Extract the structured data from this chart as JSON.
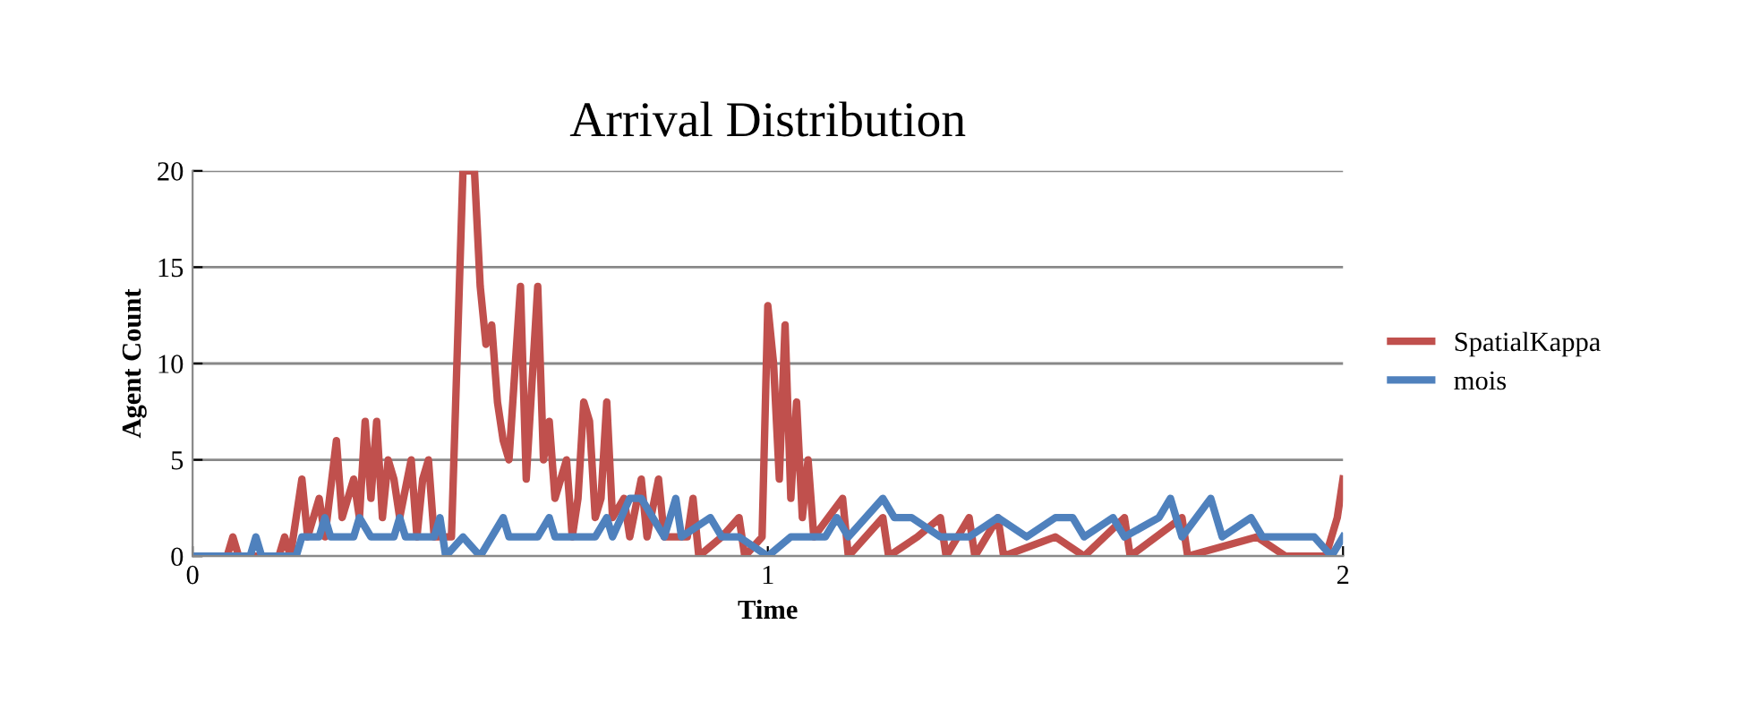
{
  "chart_data": {
    "type": "line",
    "title": "Arrival Distribution",
    "xlabel": "Time",
    "ylabel": "Agent Count",
    "xlim": [
      0,
      2
    ],
    "xticks": [
      0,
      1,
      2
    ],
    "ylim": [
      0,
      20
    ],
    "yticks": [
      0,
      5,
      10,
      15,
      20
    ],
    "grid": "y",
    "legend": "right",
    "series": [
      {
        "name": "SpatialKappa",
        "color": "#c0504d",
        "x": [
          0,
          0.06,
          0.07,
          0.08,
          0.15,
          0.16,
          0.17,
          0.19,
          0.2,
          0.22,
          0.23,
          0.25,
          0.26,
          0.28,
          0.29,
          0.3,
          0.31,
          0.32,
          0.33,
          0.34,
          0.35,
          0.36,
          0.38,
          0.39,
          0.4,
          0.41,
          0.42,
          0.45,
          0.47,
          0.49,
          0.5,
          0.51,
          0.52,
          0.53,
          0.54,
          0.55,
          0.57,
          0.58,
          0.6,
          0.61,
          0.62,
          0.63,
          0.65,
          0.66,
          0.67,
          0.68,
          0.69,
          0.7,
          0.71,
          0.72,
          0.73,
          0.75,
          0.76,
          0.78,
          0.79,
          0.81,
          0.82,
          0.86,
          0.87,
          0.88,
          0.92,
          0.95,
          0.96,
          0.99,
          1.0,
          1.01,
          1.02,
          1.03,
          1.04,
          1.05,
          1.06,
          1.07,
          1.08,
          1.13,
          1.14,
          1.2,
          1.21,
          1.26,
          1.3,
          1.31,
          1.35,
          1.36,
          1.4,
          1.41,
          1.5,
          1.55,
          1.62,
          1.63,
          1.72,
          1.73,
          1.85,
          1.9,
          1.97,
          1.99,
          2.0
        ],
        "values": [
          0,
          0,
          1,
          0,
          0,
          1,
          0,
          4,
          1,
          3,
          1,
          6,
          2,
          4,
          2,
          7,
          3,
          7,
          2,
          5,
          4,
          2,
          5,
          1,
          4,
          5,
          1,
          1,
          20,
          20,
          14,
          11,
          12,
          8,
          6,
          5,
          14,
          4,
          14,
          5,
          7,
          3,
          5,
          1,
          3,
          8,
          7,
          2,
          3,
          8,
          2,
          3,
          1,
          4,
          1,
          4,
          1,
          1,
          3,
          0,
          1,
          2,
          0,
          1,
          13,
          10,
          4,
          12,
          3,
          8,
          2,
          5,
          1,
          3,
          0,
          2,
          0,
          1,
          2,
          0,
          2,
          0,
          2,
          0,
          1,
          0,
          2,
          0,
          2,
          0,
          1,
          0,
          0,
          2,
          4
        ]
      },
      {
        "name": "mois",
        "color": "#4f81bd",
        "x": [
          0,
          0.1,
          0.11,
          0.12,
          0.18,
          0.19,
          0.22,
          0.23,
          0.24,
          0.28,
          0.29,
          0.31,
          0.35,
          0.36,
          0.37,
          0.42,
          0.43,
          0.44,
          0.47,
          0.5,
          0.54,
          0.55,
          0.6,
          0.62,
          0.63,
          0.7,
          0.72,
          0.73,
          0.76,
          0.78,
          0.8,
          0.82,
          0.84,
          0.85,
          0.9,
          0.92,
          0.95,
          1.0,
          1.04,
          1.1,
          1.12,
          1.14,
          1.2,
          1.22,
          1.25,
          1.3,
          1.35,
          1.4,
          1.45,
          1.5,
          1.53,
          1.55,
          1.6,
          1.62,
          1.68,
          1.7,
          1.72,
          1.77,
          1.79,
          1.84,
          1.86,
          1.95,
          1.98,
          2.0
        ],
        "values": [
          0,
          0,
          1,
          0,
          0,
          1,
          1,
          2,
          1,
          1,
          2,
          1,
          1,
          2,
          1,
          1,
          2,
          0,
          1,
          0,
          2,
          1,
          1,
          2,
          1,
          1,
          2,
          1,
          3,
          3,
          2,
          1,
          3,
          1,
          2,
          1,
          1,
          0,
          1,
          1,
          2,
          1,
          3,
          2,
          2,
          1,
          1,
          2,
          1,
          2,
          2,
          1,
          2,
          1,
          2,
          3,
          1,
          3,
          1,
          2,
          1,
          1,
          0,
          1
        ]
      }
    ]
  }
}
